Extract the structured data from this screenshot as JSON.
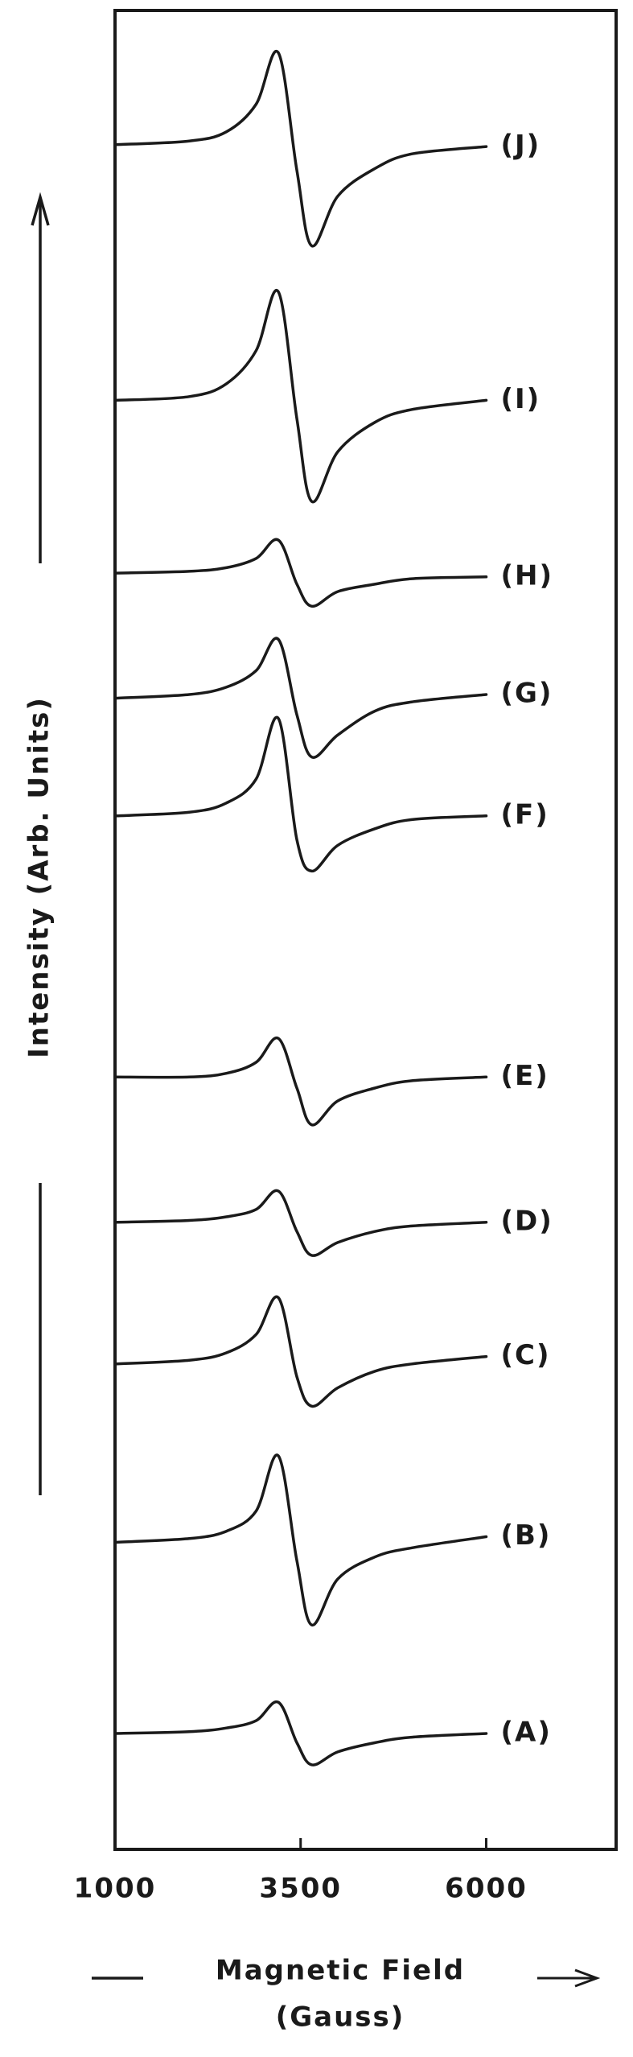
{
  "chart_data": {
    "type": "line",
    "ylabel": "Intensity (Arb. Units)",
    "xlabel": [
      "Magnetic Field",
      "(Gauss)"
    ],
    "x": [
      1000,
      2000,
      2500,
      2900,
      3200,
      3450,
      3650,
      4000,
      4500,
      5000,
      6000
    ],
    "xlim": [
      1000,
      7750
    ],
    "xticks": [
      1000,
      3500,
      6000
    ],
    "ylim": [
      0,
      100
    ],
    "color": "#1a1a1a",
    "series": [
      {
        "name": "(J)",
        "values": [
          92.7,
          92.9,
          93.4,
          94.9,
          97.7,
          91.3,
          87.2,
          89.9,
          91.4,
          92.2,
          92.6
        ]
      },
      {
        "name": "(I)",
        "values": [
          78.8,
          79.0,
          79.7,
          81.5,
          84.7,
          77.8,
          73.3,
          76.0,
          77.6,
          78.3,
          78.8
        ]
      },
      {
        "name": "(H)",
        "values": [
          69.4,
          69.5,
          69.7,
          70.2,
          71.2,
          68.8,
          67.6,
          68.4,
          68.8,
          69.1,
          69.2
        ]
      },
      {
        "name": "(G)",
        "values": [
          62.6,
          62.8,
          63.2,
          64.1,
          65.8,
          61.7,
          59.4,
          60.6,
          61.9,
          62.4,
          62.8
        ]
      },
      {
        "name": "(F)",
        "values": [
          56.2,
          56.4,
          56.9,
          58.2,
          61.5,
          54.9,
          53.2,
          54.6,
          55.5,
          56.0,
          56.2
        ]
      },
      {
        "name": "(E)",
        "values": [
          42.0,
          42.0,
          42.2,
          42.8,
          44.1,
          41.4,
          39.4,
          40.7,
          41.4,
          41.8,
          42.0
        ]
      },
      {
        "name": "(D)",
        "values": [
          34.1,
          34.2,
          34.4,
          34.8,
          35.8,
          33.6,
          32.3,
          33.0,
          33.6,
          33.9,
          34.1
        ]
      },
      {
        "name": "(C)",
        "values": [
          26.4,
          26.6,
          27.0,
          28.0,
          30.0,
          25.7,
          24.1,
          25.1,
          26.0,
          26.4,
          26.8
        ]
      },
      {
        "name": "(B)",
        "values": [
          16.7,
          16.9,
          17.3,
          18.4,
          21.4,
          15.7,
          12.2,
          14.7,
          15.9,
          16.4,
          17.0
        ]
      },
      {
        "name": "(A)",
        "values": [
          6.3,
          6.4,
          6.6,
          7.0,
          8.0,
          5.8,
          4.6,
          5.3,
          5.8,
          6.1,
          6.3
        ]
      }
    ]
  }
}
